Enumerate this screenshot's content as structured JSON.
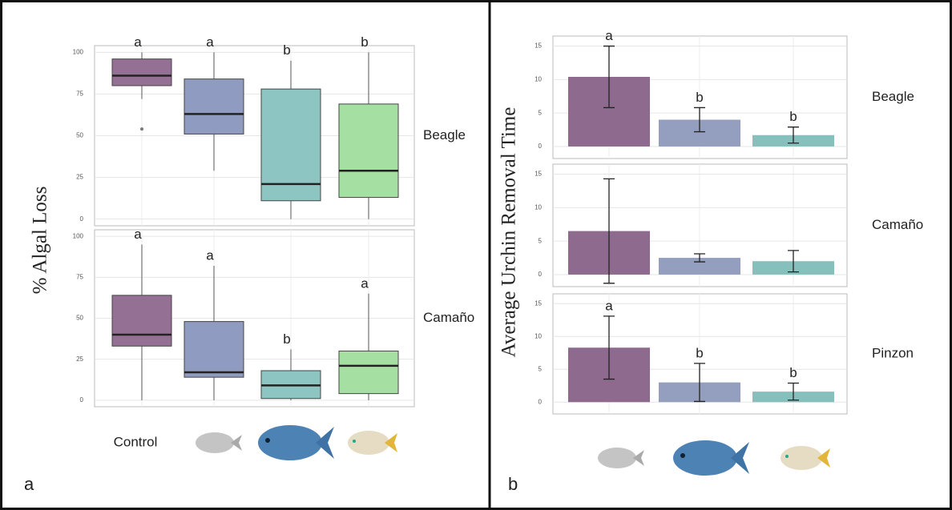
{
  "chart_data": [
    {
      "type": "box",
      "panel_label": "a",
      "ylabel": "% Algal Loss",
      "categories": [
        "Control",
        null,
        null,
        null
      ],
      "colors": [
        "#957095",
        "#8f9bc0",
        "#8cc5c2",
        "#a6dfa2"
      ],
      "facets": [
        {
          "name": "Beagle",
          "ylim": [
            -4,
            104
          ],
          "yticks": [
            0,
            25,
            50,
            75,
            100
          ],
          "boxes": [
            {
              "min": 72,
              "q1": 80,
              "median": 86,
              "q3": 96,
              "max": 100,
              "outliers": [
                54
              ]
            },
            {
              "min": 29,
              "q1": 51,
              "median": 63,
              "q3": 84,
              "max": 100
            },
            {
              "min": 0,
              "q1": 11,
              "median": 21,
              "q3": 78,
              "max": 95
            },
            {
              "min": 0,
              "q1": 13,
              "median": 29,
              "q3": 69,
              "max": 100
            }
          ],
          "letters": [
            "a",
            "a",
            "b",
            "b"
          ]
        },
        {
          "name": "Camaño",
          "ylim": [
            -4,
            104
          ],
          "yticks": [
            0,
            25,
            50,
            75,
            100
          ],
          "boxes": [
            {
              "min": 0,
              "q1": 33,
              "median": 40,
              "q3": 64,
              "max": 95
            },
            {
              "min": 0,
              "q1": 14,
              "median": 17,
              "q3": 48,
              "max": 82
            },
            {
              "min": 0,
              "q1": 1,
              "median": 9,
              "q3": 18,
              "max": 31
            },
            {
              "min": 0,
              "q1": 4,
              "median": 21,
              "q3": 30,
              "max": 65
            }
          ],
          "letters": [
            "a",
            "a",
            "b",
            "a"
          ]
        }
      ]
    },
    {
      "type": "bar",
      "panel_label": "b",
      "ylabel": "Average Urchin Removal Time",
      "categories": [
        null,
        null,
        null
      ],
      "colors": [
        "#8e6a8e",
        "#949fc0",
        "#85c0bc"
      ],
      "facets": [
        {
          "name": "Beagle",
          "ylim": [
            -1.8,
            16.5
          ],
          "yticks": [
            0,
            5,
            10,
            15
          ],
          "values": [
            10.4,
            4.0,
            1.7
          ],
          "errors": [
            4.6,
            1.8,
            1.2
          ],
          "letters": [
            "a",
            "b",
            "b"
          ]
        },
        {
          "name": "Camaño",
          "ylim": [
            -1.8,
            16.5
          ],
          "yticks": [
            0,
            5,
            10,
            15
          ],
          "values": [
            6.5,
            2.5,
            2.0
          ],
          "errors": [
            7.8,
            0.6,
            1.6
          ]
        },
        {
          "name": "Pinzon",
          "ylim": [
            -1.8,
            16.5
          ],
          "yticks": [
            0,
            5,
            10,
            15
          ],
          "values": [
            8.3,
            3.0,
            1.6
          ],
          "errors": [
            4.8,
            2.9,
            1.3
          ],
          "letters": [
            "a",
            "b",
            "b"
          ]
        }
      ]
    }
  ]
}
